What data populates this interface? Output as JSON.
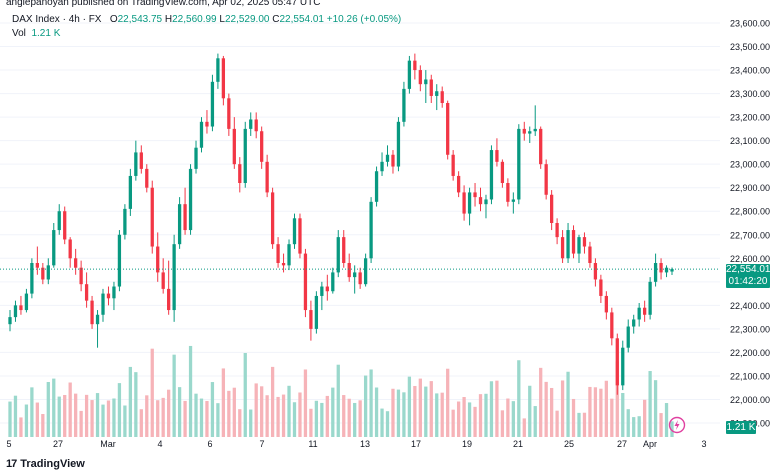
{
  "publish_line": "anglepanoyan published on TradingView.com, Apr 02, 2025 05:47 UTC",
  "legend": {
    "symbol": "DAX Index · 4h · FX",
    "open_label": "O",
    "open": "22,543.75",
    "high_label": "H",
    "high": "22,560.99",
    "low_label": "L",
    "low": "22,529.00",
    "close_label": "C",
    "close": "22,554.01",
    "change": "+10.26 (+0.05%)"
  },
  "volume": {
    "label": "Vol",
    "value": "1.21 K"
  },
  "price_tag": {
    "price": "22,554.01",
    "countdown": "01:42:20"
  },
  "volume_tag": "1.21 K",
  "logo_text": "TradingView",
  "colors": {
    "up": "#089981",
    "down": "#f23645",
    "up_vol": "#9ad8cc",
    "down_vol": "#f6b3b8"
  },
  "chart_data": {
    "type": "candlestick",
    "price_axis": {
      "ticks": [
        "23,600.00",
        "23,500.00",
        "23,400.00",
        "23,300.00",
        "23,200.00",
        "23,100.00",
        "23,000.00",
        "22,900.00",
        "22,800.00",
        "22,700.00",
        "22,600.00",
        "22,500.00",
        "22,400.00",
        "22,300.00",
        "22,200.00",
        "22,100.00",
        "22,000.00",
        "21,900.00"
      ],
      "range": [
        21900,
        23600
      ]
    },
    "time_axis": [
      "5",
      "27",
      "Mar",
      "4",
      "6",
      "7",
      "11",
      "13",
      "17",
      "19",
      "21",
      "25",
      "27",
      "Apr",
      "3"
    ],
    "last_price": 22554.01,
    "candles": [
      [
        22320,
        22380,
        22290,
        22350
      ],
      [
        22350,
        22420,
        22330,
        22400
      ],
      [
        22400,
        22440,
        22360,
        22380
      ],
      [
        22380,
        22470,
        22370,
        22450
      ],
      [
        22450,
        22600,
        22430,
        22580
      ],
      [
        22580,
        22650,
        22530,
        22560
      ],
      [
        22560,
        22580,
        22490,
        22510
      ],
      [
        22510,
        22600,
        22490,
        22570
      ],
      [
        22570,
        22750,
        22560,
        22720
      ],
      [
        22720,
        22830,
        22700,
        22800
      ],
      [
        22800,
        22820,
        22660,
        22680
      ],
      [
        22680,
        22690,
        22560,
        22600
      ],
      [
        22600,
        22640,
        22530,
        22560
      ],
      [
        22560,
        22590,
        22460,
        22490
      ],
      [
        22490,
        22540,
        22390,
        22420
      ],
      [
        22420,
        22440,
        22300,
        22320
      ],
      [
        22320,
        22380,
        22220,
        22360
      ],
      [
        22360,
        22470,
        22330,
        22450
      ],
      [
        22450,
        22480,
        22400,
        22430
      ],
      [
        22430,
        22500,
        22380,
        22480
      ],
      [
        22480,
        22720,
        22460,
        22700
      ],
      [
        22700,
        22830,
        22680,
        22810
      ],
      [
        22810,
        22980,
        22780,
        22950
      ],
      [
        22950,
        23100,
        22930,
        23050
      ],
      [
        23050,
        23080,
        22960,
        22980
      ],
      [
        22980,
        23000,
        22880,
        22900
      ],
      [
        22900,
        22930,
        22620,
        22650
      ],
      [
        22650,
        22710,
        22500,
        22540
      ],
      [
        22540,
        22600,
        22450,
        22470
      ],
      [
        22470,
        22590,
        22360,
        22380
      ],
      [
        22380,
        22700,
        22330,
        22660
      ],
      [
        22660,
        22860,
        22640,
        22830
      ],
      [
        22830,
        22900,
        22700,
        22720
      ],
      [
        22720,
        23000,
        22700,
        22980
      ],
      [
        22980,
        23100,
        22960,
        23070
      ],
      [
        23070,
        23200,
        23050,
        23180
      ],
      [
        23180,
        23230,
        23130,
        23160
      ],
      [
        23160,
        23380,
        23140,
        23350
      ],
      [
        23350,
        23470,
        23320,
        23450
      ],
      [
        23450,
        23460,
        23250,
        23280
      ],
      [
        23280,
        23300,
        23120,
        23150
      ],
      [
        23150,
        23200,
        22980,
        23000
      ],
      [
        23000,
        23030,
        22880,
        22920
      ],
      [
        22920,
        23180,
        22900,
        23150
      ],
      [
        23150,
        23220,
        23120,
        23190
      ],
      [
        23190,
        23220,
        23110,
        23140
      ],
      [
        23140,
        23160,
        22980,
        23010
      ],
      [
        23010,
        23040,
        22860,
        22880
      ],
      [
        22880,
        22900,
        22640,
        22660
      ],
      [
        22660,
        22690,
        22560,
        22580
      ],
      [
        22580,
        22620,
        22540,
        22570
      ],
      [
        22570,
        22680,
        22550,
        22660
      ],
      [
        22660,
        22790,
        22640,
        22770
      ],
      [
        22770,
        22790,
        22600,
        22620
      ],
      [
        22620,
        22640,
        22350,
        22380
      ],
      [
        22380,
        22420,
        22250,
        22300
      ],
      [
        22300,
        22460,
        22280,
        22440
      ],
      [
        22440,
        22500,
        22380,
        22480
      ],
      [
        22480,
        22530,
        22420,
        22460
      ],
      [
        22460,
        22560,
        22450,
        22540
      ],
      [
        22540,
        22720,
        22520,
        22690
      ],
      [
        22690,
        22720,
        22560,
        22580
      ],
      [
        22580,
        22620,
        22500,
        22520
      ],
      [
        22520,
        22570,
        22450,
        22540
      ],
      [
        22540,
        22560,
        22470,
        22490
      ],
      [
        22490,
        22620,
        22480,
        22600
      ],
      [
        22600,
        22860,
        22580,
        22840
      ],
      [
        22840,
        22990,
        22820,
        22970
      ],
      [
        22970,
        23050,
        22950,
        23010
      ],
      [
        23010,
        23080,
        22990,
        23040
      ],
      [
        23040,
        23060,
        22960,
        22990
      ],
      [
        22990,
        23200,
        22970,
        23180
      ],
      [
        23180,
        23350,
        23160,
        23320
      ],
      [
        23320,
        23460,
        23300,
        23440
      ],
      [
        23440,
        23470,
        23360,
        23400
      ],
      [
        23400,
        23420,
        23310,
        23340
      ],
      [
        23340,
        23400,
        23260,
        23360
      ],
      [
        23360,
        23380,
        23260,
        23290
      ],
      [
        23290,
        23340,
        23230,
        23310
      ],
      [
        23310,
        23330,
        23240,
        23260
      ],
      [
        23260,
        23270,
        23020,
        23040
      ],
      [
        23040,
        23060,
        22930,
        22950
      ],
      [
        22950,
        22970,
        22860,
        22880
      ],
      [
        22880,
        22910,
        22760,
        22790
      ],
      [
        22790,
        22900,
        22740,
        22880
      ],
      [
        22880,
        22920,
        22820,
        22860
      ],
      [
        22860,
        22900,
        22800,
        22830
      ],
      [
        22830,
        22870,
        22770,
        22850
      ],
      [
        22850,
        23080,
        22830,
        23060
      ],
      [
        23060,
        23110,
        22990,
        23010
      ],
      [
        23010,
        23020,
        22900,
        22920
      ],
      [
        22920,
        22940,
        22820,
        22840
      ],
      [
        22840,
        22880,
        22790,
        22850
      ],
      [
        22850,
        23170,
        22830,
        23150
      ],
      [
        23150,
        23180,
        23100,
        23130
      ],
      [
        23130,
        23160,
        23090,
        23140
      ],
      [
        23140,
        23250,
        23120,
        23150
      ],
      [
        23150,
        23160,
        22980,
        23000
      ],
      [
        23000,
        23020,
        22850,
        22870
      ],
      [
        22870,
        22890,
        22720,
        22750
      ],
      [
        22750,
        22770,
        22660,
        22690
      ],
      [
        22690,
        22720,
        22580,
        22600
      ],
      [
        22600,
        22750,
        22580,
        22720
      ],
      [
        22720,
        22740,
        22600,
        22620
      ],
      [
        22620,
        22700,
        22580,
        22690
      ],
      [
        22690,
        22710,
        22620,
        22650
      ],
      [
        22650,
        22670,
        22560,
        22580
      ],
      [
        22580,
        22600,
        22480,
        22510
      ],
      [
        22510,
        22530,
        22410,
        22440
      ],
      [
        22440,
        22460,
        22340,
        22370
      ],
      [
        22370,
        22390,
        22230,
        22260
      ],
      [
        22260,
        22280,
        22020,
        22060
      ],
      [
        22060,
        22250,
        22040,
        22220
      ],
      [
        22220,
        22340,
        22200,
        22310
      ],
      [
        22310,
        22360,
        22280,
        22340
      ],
      [
        22340,
        22410,
        22310,
        22390
      ],
      [
        22390,
        22420,
        22330,
        22360
      ],
      [
        22360,
        22520,
        22340,
        22500
      ],
      [
        22500,
        22620,
        22480,
        22580
      ],
      [
        22580,
        22600,
        22510,
        22540
      ],
      [
        22540,
        22570,
        22520,
        22560
      ],
      [
        22543.75,
        22560.99,
        22529,
        22554.01
      ]
    ]
  }
}
